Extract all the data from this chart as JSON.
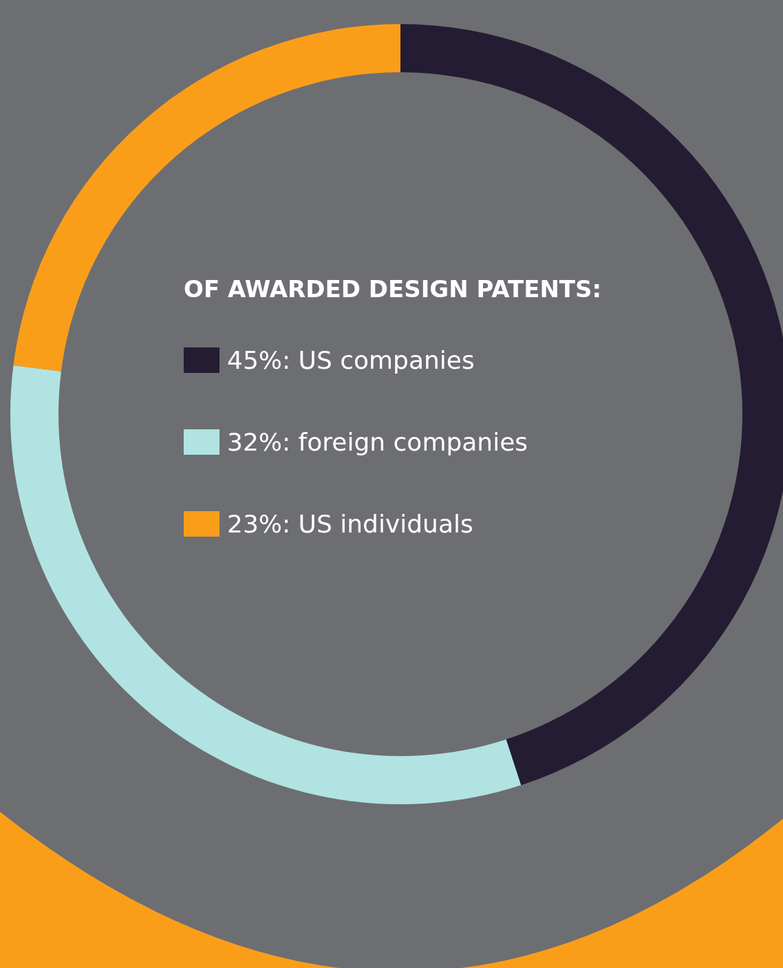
{
  "chart_data": {
    "type": "donut",
    "title": "OF AWARDED DESIGN PATENTS:",
    "categories": [
      "US companies",
      "foreign companies",
      "US individuals"
    ],
    "values": [
      45,
      32,
      23
    ],
    "value_labels": [
      "45%:",
      "32%:",
      "23%:"
    ],
    "colors": [
      "#241c33",
      "#b1e3e2",
      "#fa9e1a"
    ],
    "legend": "center"
  }
}
